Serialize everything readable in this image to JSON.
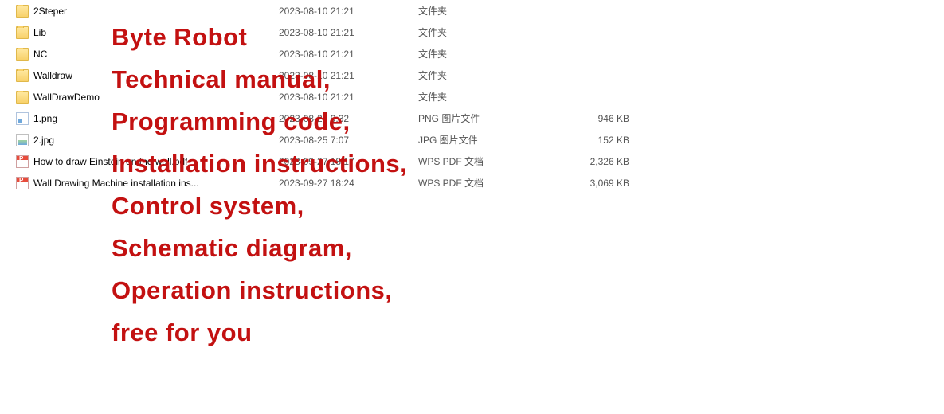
{
  "files": [
    {
      "icon": "folder",
      "name": "2Steper",
      "date": "2023-08-10 21:21",
      "type": "文件夹",
      "size": ""
    },
    {
      "icon": "folder",
      "name": "Lib",
      "date": "2023-08-10 21:21",
      "type": "文件夹",
      "size": ""
    },
    {
      "icon": "folder",
      "name": "NC",
      "date": "2023-08-10 21:21",
      "type": "文件夹",
      "size": ""
    },
    {
      "icon": "folder",
      "name": "Walldraw",
      "date": "2023-08-10 21:21",
      "type": "文件夹",
      "size": ""
    },
    {
      "icon": "folder",
      "name": "WallDrawDemo",
      "date": "2023-08-10 21:21",
      "type": "文件夹",
      "size": ""
    },
    {
      "icon": "png",
      "name": "1.png",
      "date": "2023-08-23 9:32",
      "type": "PNG 图片文件",
      "size": "946 KB"
    },
    {
      "icon": "jpg",
      "name": "2.jpg",
      "date": "2023-08-25 7:07",
      "type": "JPG 图片文件",
      "size": "152 KB"
    },
    {
      "icon": "pdf",
      "name": "How to draw Einstein on the wall.pdf",
      "date": "2023-09-27 18:17",
      "type": "WPS PDF 文档",
      "size": "2,326 KB"
    },
    {
      "icon": "pdf",
      "name": "Wall Drawing Machine installation ins...",
      "date": "2023-09-27 18:24",
      "type": "WPS PDF 文档",
      "size": "3,069 KB"
    }
  ],
  "overlay_lines": [
    "Byte Robot",
    "Technical manual,",
    "Programming code,",
    "Installation instructions,",
    "Control system,",
    "Schematic diagram,",
    "Operation instructions,",
    "free for you"
  ],
  "overlay_color": "#c31111",
  "overlay_fontsize": 31
}
